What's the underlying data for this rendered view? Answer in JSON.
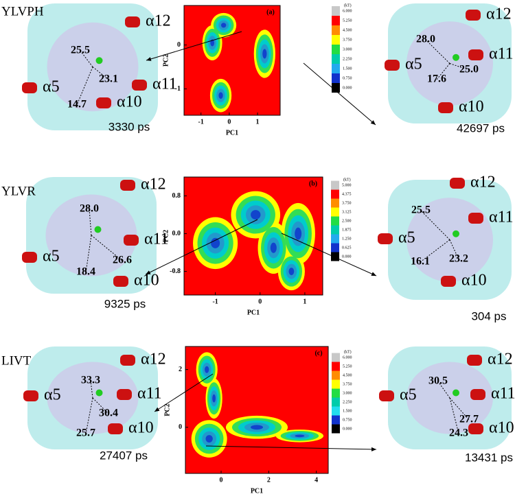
{
  "rows": [
    {
      "name": "YLVPH",
      "chart": {
        "type": "heatmap",
        "panel": "(a)",
        "x_label": "PC1",
        "y_label": "PC2",
        "xlim": [
          -1.6,
          1.8
        ],
        "ylim": [
          -1.6,
          0.9
        ],
        "xticks": [
          -1,
          0,
          1
        ],
        "yticks": [
          -1,
          0
        ],
        "colorbar": {
          "title": "(kT)",
          "colors": [
            "#c8c8c8",
            "#ff0000",
            "#ff8c00",
            "#ffff00",
            "#22dd44",
            "#00ccaa",
            "#22aaee",
            "#1133cc",
            "#000000"
          ],
          "levels": [
            {
              "value": 6,
              "label": "6.000"
            },
            {
              "value": 5.25,
              "label": "5.250"
            },
            {
              "value": 4.5,
              "label": "4.500"
            },
            {
              "value": 3.75,
              "label": "3.750"
            },
            {
              "value": 3,
              "label": "3.000"
            },
            {
              "value": 2.25,
              "label": "2.250"
            },
            {
              "value": 1.5,
              "label": "1.500"
            },
            {
              "value": 0.75,
              "label": "0.750"
            },
            {
              "value": 0,
              "label": "0.000"
            }
          ]
        }
      },
      "left": {
        "helices": [
          "α12",
          "α5",
          "α11",
          "α10"
        ],
        "distances": [
          "25.5",
          "23.1",
          "14.7"
        ],
        "time": "3330 ps"
      },
      "right": {
        "helices": [
          "α12",
          "α11",
          "α5",
          "α10"
        ],
        "distances": [
          "28.0",
          "17.6",
          "25.0"
        ],
        "time": "42697 ps"
      }
    },
    {
      "name": "YLVR",
      "chart": {
        "type": "heatmap",
        "panel": "(b)",
        "x_label": "PC1",
        "y_label": "PC2",
        "xlim": [
          -1.7,
          1.4
        ],
        "ylim": [
          -1.3,
          1.2
        ],
        "xticks": [
          -1,
          0,
          1
        ],
        "yticks": [
          0.8,
          {
            "value": 0,
            "label": "0.0"
          },
          -0.8
        ],
        "colorbar": {
          "title": "(kT)",
          "colors": [
            "#c8c8c8",
            "#ff0000",
            "#ff8c00",
            "#ffff00",
            "#22dd44",
            "#00ccaa",
            "#22aaee",
            "#1133cc",
            "#000000"
          ],
          "levels": [
            {
              "value": 5,
              "label": "5.000"
            },
            {
              "value": 4.375,
              "label": "4.375"
            },
            {
              "value": 3.75,
              "label": "3.750"
            },
            {
              "value": 3.125,
              "label": "3.125"
            },
            {
              "value": 2.5,
              "label": "2.500"
            },
            {
              "value": 1.875,
              "label": "1.875"
            },
            {
              "value": 1.25,
              "label": "1.250"
            },
            {
              "value": 0.625,
              "label": "0.625"
            },
            {
              "value": 0,
              "label": "0.000"
            }
          ]
        }
      },
      "left": {
        "helices": [
          "α12",
          "α11",
          "α5",
          "α10"
        ],
        "distances": [
          "28.0",
          "26.6",
          "18.4"
        ],
        "time": "9325 ps"
      },
      "right": {
        "helices": [
          "α12",
          "α11",
          "α5",
          "α10"
        ],
        "distances": [
          "25.5",
          "23.2",
          "16.1"
        ],
        "time": "304 ps"
      }
    },
    {
      "name": "LIVT",
      "chart": {
        "type": "heatmap",
        "panel": "(c)",
        "x_label": "PC1",
        "y_label": "PC2",
        "xlim": [
          -1.5,
          4.5
        ],
        "ylim": [
          -1.6,
          2.8
        ],
        "xticks": [
          0,
          2,
          4
        ],
        "yticks": [
          2,
          0
        ],
        "colorbar": {
          "title": "(kT)",
          "colors": [
            "#c8c8c8",
            "#ff0000",
            "#ff8c00",
            "#ffff00",
            "#22dd44",
            "#00ccaa",
            "#22ddee",
            "#1133cc",
            "#000000"
          ],
          "levels": [
            {
              "value": 6,
              "label": "6.000"
            },
            {
              "value": 5.25,
              "label": "5.250"
            },
            {
              "value": 4.5,
              "label": "4.500"
            },
            {
              "value": 3.75,
              "label": "3.750"
            },
            {
              "value": 3,
              "label": "3.000"
            },
            {
              "value": 2.25,
              "label": "2.250"
            },
            {
              "value": 1.5,
              "label": "1.500"
            },
            {
              "value": 0.75,
              "label": "0.750"
            },
            {
              "value": 0,
              "label": "0.000"
            }
          ]
        }
      },
      "left": {
        "helices": [
          "α12",
          "α11",
          "α5",
          "α10"
        ],
        "distances": [
          "33.3",
          "30.4",
          "25.7"
        ],
        "time": "27407 ps"
      },
      "right": {
        "helices": [
          "α12",
          "α11",
          "α5",
          "α10"
        ],
        "distances": [
          "30.5",
          "27.7",
          "24.3"
        ],
        "time": "13431 ps"
      }
    }
  ]
}
